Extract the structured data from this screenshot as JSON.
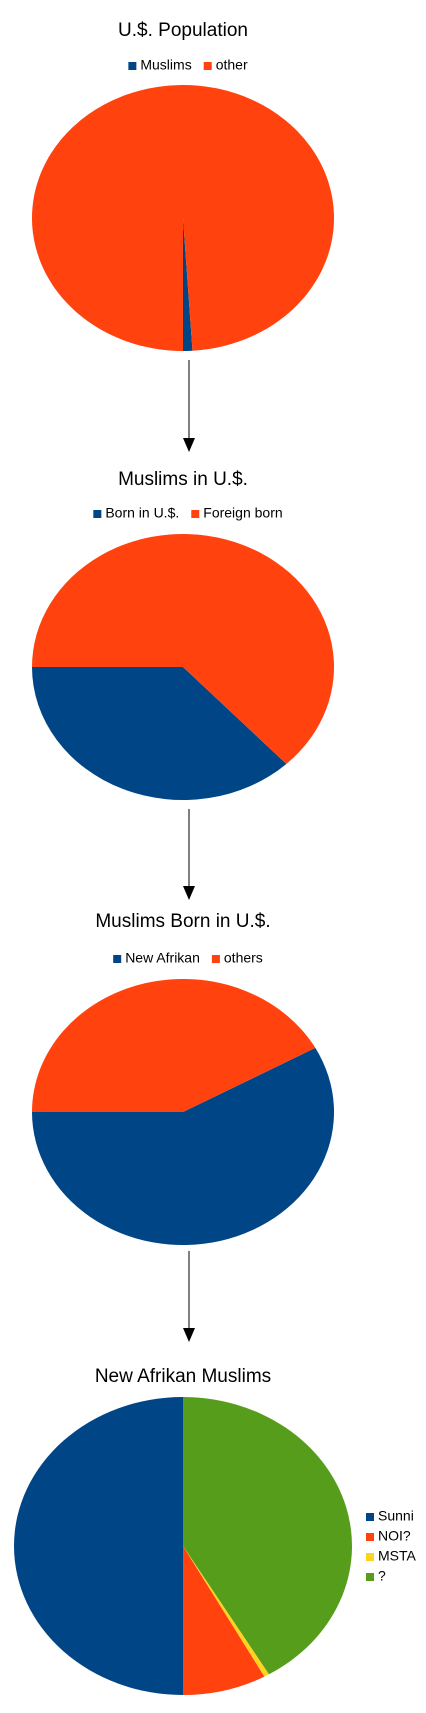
{
  "chart_data": [
    {
      "type": "pie",
      "title": "U.$. Population",
      "categories": [
        "Muslims",
        "other"
      ],
      "values": [
        1,
        99
      ],
      "colors": [
        "#004586",
        "#ff420e"
      ],
      "legend": "top"
    },
    {
      "type": "pie",
      "title": "Muslims in U.$.",
      "categories": [
        "Born in U.$.",
        "Foreign born"
      ],
      "values": [
        37,
        63
      ],
      "colors": [
        "#004586",
        "#ff420e"
      ],
      "legend": "top"
    },
    {
      "type": "pie",
      "title": "Muslims Born in U.$.",
      "categories": [
        "New Afrikan",
        "others"
      ],
      "values": [
        58,
        42
      ],
      "colors": [
        "#004586",
        "#ff420e"
      ],
      "legend": "top"
    },
    {
      "type": "pie",
      "title": "New Afrikan Muslims",
      "categories": [
        "Sunni",
        "NOI?",
        "MSTA",
        "?"
      ],
      "values": [
        50,
        8,
        0.5,
        41.5
      ],
      "colors": [
        "#004586",
        "#ff420e",
        "#ffd320",
        "#579d1c"
      ],
      "legend": "right"
    }
  ]
}
